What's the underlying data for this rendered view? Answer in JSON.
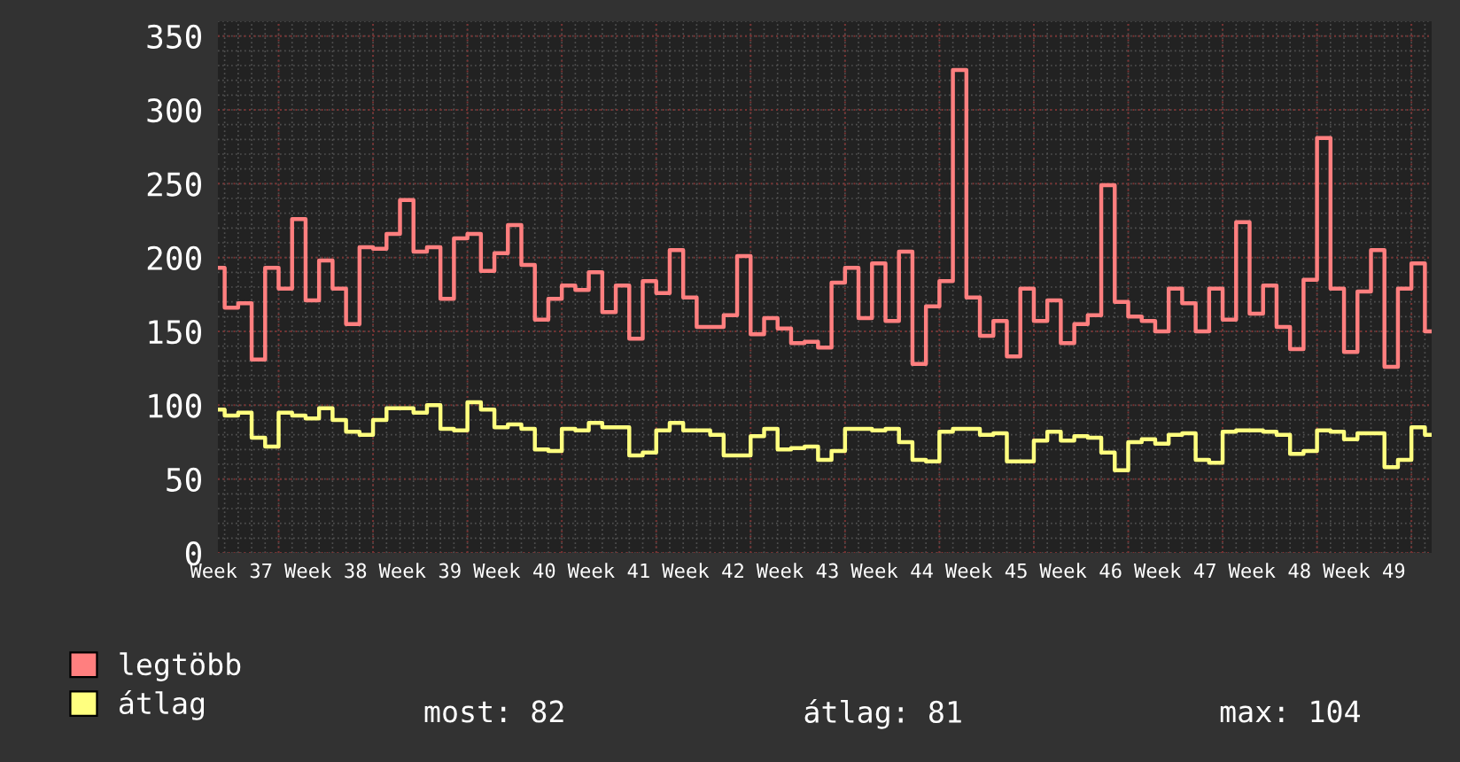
{
  "chart_data": {
    "type": "step",
    "categories": [
      null,
      "Week 37",
      null,
      null,
      null,
      null,
      null,
      null,
      "Week 38",
      null,
      null,
      null,
      null,
      null,
      null,
      "Week 39",
      null,
      null,
      null,
      null,
      null,
      null,
      "Week 40",
      null,
      null,
      null,
      null,
      null,
      null,
      "Week 41",
      null,
      null,
      null,
      null,
      null,
      null,
      "Week 42",
      null,
      null,
      null,
      null,
      null,
      null,
      "Week 43",
      null,
      null,
      null,
      null,
      null,
      null,
      "Week 44",
      null,
      null,
      null,
      null,
      null,
      null,
      "Week 45",
      null,
      null,
      null,
      null,
      null,
      null,
      "Week 46",
      null,
      null,
      null,
      null,
      null,
      null,
      "Week 47",
      null,
      null,
      null,
      null,
      null,
      null,
      "Week 48",
      null,
      null,
      null,
      null,
      null,
      null,
      "Week 49",
      null,
      null,
      null,
      null,
      null
    ],
    "series": [
      {
        "name": "legtöbb",
        "color": "#ff7f7f",
        "values": [
          193,
          166,
          169,
          131,
          193,
          179,
          226,
          171,
          198,
          179,
          155,
          207,
          206,
          216,
          239,
          204,
          207,
          172,
          213,
          216,
          191,
          203,
          222,
          195,
          158,
          172,
          181,
          178,
          190,
          163,
          181,
          145,
          184,
          176,
          205,
          173,
          153,
          153,
          161,
          201,
          148,
          159,
          152,
          142,
          143,
          139,
          183,
          193,
          159,
          196,
          157,
          204,
          128,
          167,
          184,
          327,
          173,
          147,
          157,
          133,
          179,
          157,
          171,
          142,
          155,
          161,
          249,
          170,
          160,
          157,
          150,
          179,
          169,
          150,
          179,
          158,
          224,
          162,
          181,
          153,
          138,
          185,
          281,
          179,
          136,
          177,
          205,
          126,
          179,
          196,
          150
        ]
      },
      {
        "name": "átlag",
        "color": "#ffff7f",
        "values": [
          97,
          93,
          95,
          78,
          72,
          95,
          93,
          91,
          98,
          90,
          82,
          80,
          90,
          98,
          98,
          95,
          100,
          84,
          83,
          102,
          97,
          85,
          87,
          84,
          70,
          69,
          84,
          83,
          88,
          85,
          85,
          66,
          68,
          83,
          88,
          83,
          83,
          80,
          66,
          66,
          79,
          84,
          70,
          71,
          72,
          63,
          69,
          84,
          84,
          83,
          84,
          75,
          63,
          62,
          82,
          84,
          84,
          80,
          81,
          62,
          62,
          76,
          82,
          76,
          79,
          78,
          68,
          56,
          75,
          77,
          74,
          80,
          81,
          63,
          61,
          82,
          83,
          83,
          82,
          80,
          67,
          69,
          83,
          82,
          77,
          81,
          81,
          58,
          63,
          85,
          80
        ]
      }
    ],
    "ylim": [
      0,
      360
    ],
    "yticks": [
      0,
      50,
      100,
      150,
      200,
      250,
      300,
      350
    ],
    "grid": true,
    "legend": "bottom left",
    "annotations": [
      "most: 82",
      "átlag: 81",
      "max: 104"
    ]
  }
}
